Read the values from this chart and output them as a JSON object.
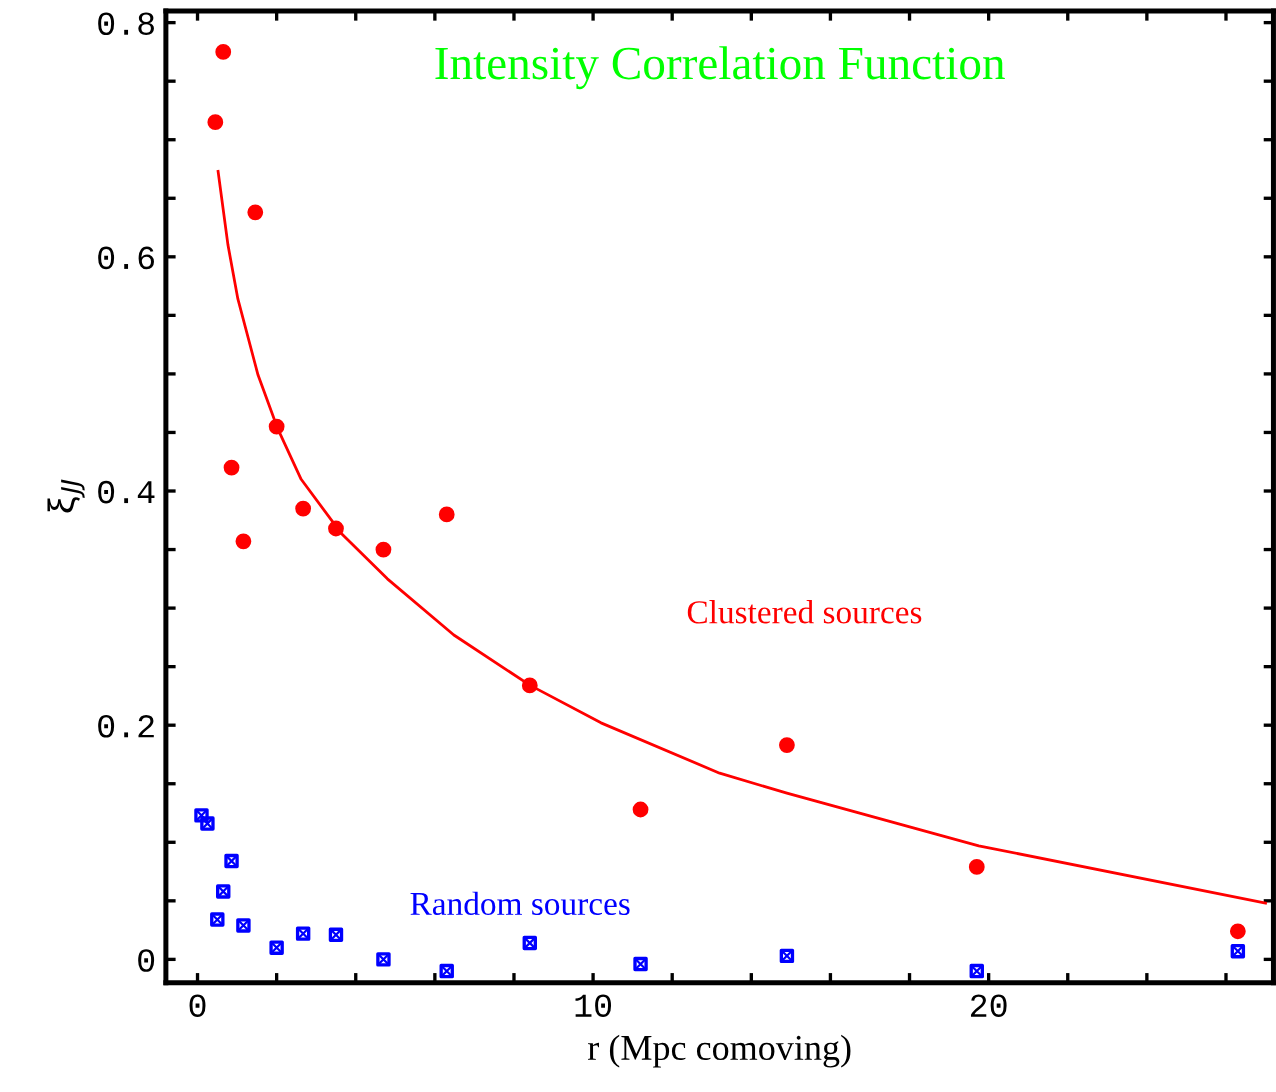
{
  "chart_data": {
    "type": "scatter",
    "title": "Intensity Correlation Function",
    "xlabel": "r (Mpc comoving)",
    "ylabel": "ξ$_{JJ}$",
    "xlim": [
      -0.8,
      27.2
    ],
    "ylim": [
      -0.02,
      0.81
    ],
    "xticks": [
      0,
      {
        "value": 2,
        "label": null
      },
      {
        "value": 4,
        "label": null
      },
      {
        "value": 6,
        "label": null
      },
      {
        "value": 8,
        "label": null
      },
      10,
      {
        "value": 12,
        "label": null
      },
      {
        "value": 14,
        "label": null
      },
      {
        "value": 16,
        "label": null
      },
      {
        "value": 18,
        "label": null
      },
      20,
      {
        "value": 22,
        "label": null
      },
      {
        "value": 24,
        "label": null
      },
      {
        "value": 26,
        "label": null
      }
    ],
    "yticks": [
      {
        "value": 0,
        "label": "0"
      },
      {
        "value": 0.05,
        "label": null
      },
      {
        "value": 0.1,
        "label": null
      },
      {
        "value": 0.15,
        "label": null
      },
      0.2,
      {
        "value": 0.25,
        "label": null
      },
      {
        "value": 0.3,
        "label": null
      },
      {
        "value": 0.35,
        "label": null
      },
      0.4,
      {
        "value": 0.45,
        "label": null
      },
      {
        "value": 0.5,
        "label": null
      },
      {
        "value": 0.55,
        "label": null
      },
      0.6,
      {
        "value": 0.65,
        "label": null
      },
      {
        "value": 0.7,
        "label": null
      },
      {
        "value": 0.75,
        "label": null
      },
      0.8
    ],
    "grid": false,
    "legend": false,
    "series": [
      {
        "name": "Clustered sources",
        "marker": "circle",
        "color": "#ff0000",
        "x": [
          0.65,
          0.45,
          1.46,
          0.86,
          1.16,
          2.0,
          2.67,
          3.5,
          4.7,
          6.3,
          8.4,
          11.2,
          14.9,
          19.7,
          26.3
        ],
        "values": [
          0.775,
          0.715,
          0.638,
          0.42,
          0.357,
          0.455,
          0.385,
          0.368,
          0.35,
          0.38,
          0.234,
          0.128,
          0.183,
          0.079,
          0.024
        ]
      },
      {
        "name": "Random sources",
        "marker": "square",
        "color": "#0000ff",
        "x": [
          0.1,
          0.25,
          0.86,
          0.65,
          0.5,
          1.16,
          2.0,
          2.67,
          3.5,
          4.7,
          6.3,
          8.4,
          11.2,
          14.9,
          19.7,
          26.3
        ],
        "values": [
          0.123,
          0.116,
          0.084,
          0.058,
          0.034,
          0.029,
          0.01,
          0.022,
          0.021,
          0.0,
          -0.01,
          0.014,
          -0.004,
          0.003,
          -0.01,
          0.007
        ]
      },
      {
        "type": "line",
        "line_style": "solid",
        "color": "#ff0000",
        "x": [
          0.52,
          0.77,
          1.02,
          1.53,
          2.03,
          2.62,
          3.63,
          4.8,
          6.48,
          8.41,
          10.2,
          13.2,
          14.9,
          19.75,
          27.0
        ],
        "values": [
          0.673,
          0.61,
          0.564,
          0.499,
          0.453,
          0.41,
          0.364,
          0.325,
          0.277,
          0.234,
          0.202,
          0.159,
          0.142,
          0.097,
          0.048
        ]
      }
    ]
  }
}
